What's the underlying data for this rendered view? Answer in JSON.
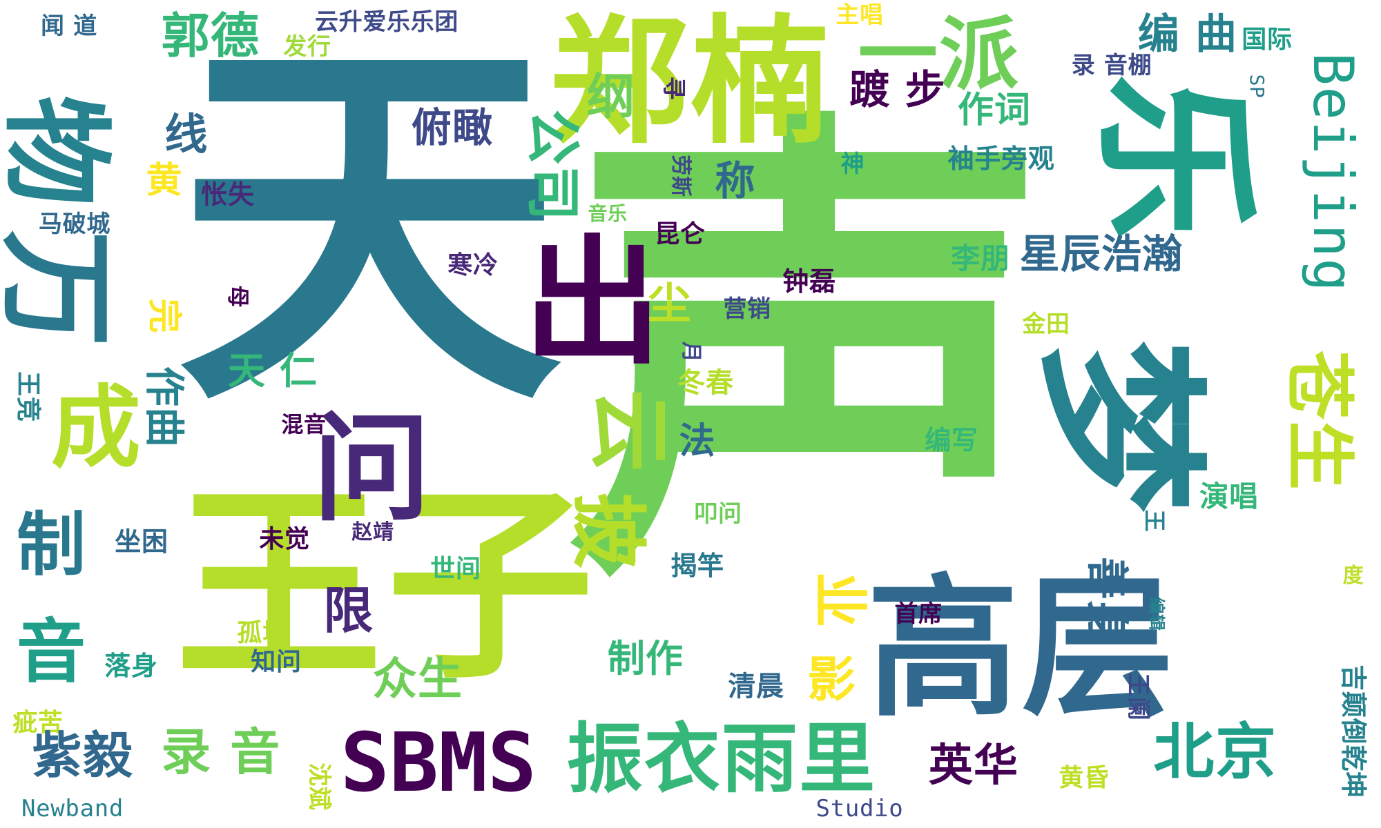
{
  "palette": {
    "lime": "#b5de2b",
    "green": "#6ece58",
    "green2": "#35b779",
    "teal": "#1f9e89",
    "teal2": "#26828e",
    "blue": "#31688e",
    "indigo": "#3e4989",
    "purple": "#482878",
    "dark": "#440154"
  },
  "words": [
    {
      "t": "天",
      "c": "#2a788e"
    },
    {
      "t": "声",
      "c": "#6ece58"
    },
    {
      "t": "王子",
      "c": "#b5de2b"
    },
    {
      "t": "郑楠",
      "c": "#b5de2b"
    },
    {
      "t": "一派",
      "c": "#6ece58"
    },
    {
      "t": "乐",
      "c": "#1f9e89"
    },
    {
      "t": "物",
      "c": "#26828e"
    },
    {
      "t": "万",
      "c": "#2a788e"
    },
    {
      "t": "出",
      "c": "#440154"
    },
    {
      "t": "梦",
      "c": "#26828e"
    },
    {
      "t": "高层",
      "c": "#31688e"
    },
    {
      "t": "问",
      "c": "#482878"
    },
    {
      "t": "成",
      "c": "#b5de2b"
    },
    {
      "t": "云",
      "c": "#a0da39"
    },
    {
      "t": "披",
      "c": "#b5de2b"
    },
    {
      "t": "制",
      "c": "#2a788e"
    },
    {
      "t": "音",
      "c": "#1f9e89"
    },
    {
      "t": "苍生",
      "c": "#bddf26"
    },
    {
      "t": "Beijing",
      "c": "#1f9e89"
    },
    {
      "t": "编 曲",
      "c": "#26828e"
    },
    {
      "t": "国际",
      "c": "#1f9e89"
    },
    {
      "t": "郭德",
      "c": "#35b779"
    },
    {
      "t": "纲",
      "c": "#6ece58"
    },
    {
      "t": "云升爱乐乐团",
      "c": "#3e4989"
    },
    {
      "t": "闻 道",
      "c": "#31688e"
    },
    {
      "t": "主唱",
      "c": "#fde725"
    },
    {
      "t": "发行",
      "c": "#a0da39"
    },
    {
      "t": "线",
      "c": "#31688e"
    },
    {
      "t": "公司",
      "c": "#35b779"
    },
    {
      "t": "踱 步",
      "c": "#440154"
    },
    {
      "t": "俯瞰",
      "c": "#3e4989"
    },
    {
      "t": "作词",
      "c": "#35b779"
    },
    {
      "t": "录 音棚",
      "c": "#3e4989"
    },
    {
      "t": "SP",
      "c": "#2a788e"
    },
    {
      "t": "寻",
      "c": "#482878"
    },
    {
      "t": "称",
      "c": "#31688e"
    },
    {
      "t": "黄",
      "c": "#fde725"
    },
    {
      "t": "怅失",
      "c": "#482878"
    },
    {
      "t": "袖手旁观",
      "c": "#26828e"
    },
    {
      "t": "神",
      "c": "#1f9e89"
    },
    {
      "t": "劳斯",
      "c": "#3e4989"
    },
    {
      "t": "音乐",
      "c": "#6ece58"
    },
    {
      "t": "昆仑",
      "c": "#440154"
    },
    {
      "t": "星辰浩瀚",
      "c": "#31688e"
    },
    {
      "t": "马破城",
      "c": "#31688e"
    },
    {
      "t": "寒冷",
      "c": "#482878"
    },
    {
      "t": "李朋",
      "c": "#35b779"
    },
    {
      "t": "尘",
      "c": "#bddf26"
    },
    {
      "t": "钟磊",
      "c": "#440154"
    },
    {
      "t": "营销",
      "c": "#3e4989"
    },
    {
      "t": "金田",
      "c": "#b5de2b"
    },
    {
      "t": "母",
      "c": "#440154"
    },
    {
      "t": "完",
      "c": "#fde725"
    },
    {
      "t": "作曲",
      "c": "#26828e"
    },
    {
      "t": "天 仁",
      "c": "#35b779"
    },
    {
      "t": "月",
      "c": "#3e4989"
    },
    {
      "t": "冬春",
      "c": "#b5de2b"
    },
    {
      "t": "法",
      "c": "#31688e"
    },
    {
      "t": "王竞",
      "c": "#26828e"
    },
    {
      "t": "混音",
      "c": "#440154"
    },
    {
      "t": "编写",
      "c": "#35b779"
    },
    {
      "t": "王",
      "c": "#26828e"
    },
    {
      "t": "演唱",
      "c": "#35b779"
    },
    {
      "t": "叩问",
      "c": "#6ece58"
    },
    {
      "t": "未觉",
      "c": "#440154"
    },
    {
      "t": "赵靖",
      "c": "#482878"
    },
    {
      "t": "坐困",
      "c": "#31688e"
    },
    {
      "t": "揭竿",
      "c": "#2a788e"
    },
    {
      "t": "世间",
      "c": "#35b779"
    },
    {
      "t": "限",
      "c": "#482878"
    },
    {
      "t": "业",
      "c": "#fde725"
    },
    {
      "t": "首席",
      "c": "#440154"
    },
    {
      "t": "善身",
      "c": "#31688e"
    },
    {
      "t": "度",
      "c": "#bddf26"
    },
    {
      "t": "孤城",
      "c": "#b5de2b"
    },
    {
      "t": "知问",
      "c": "#31688e"
    },
    {
      "t": "落身",
      "c": "#1f9e89"
    },
    {
      "t": "编辑",
      "c": "#26828e"
    },
    {
      "t": "众生",
      "c": "#6ece58"
    },
    {
      "t": "制作",
      "c": "#35b779"
    },
    {
      "t": "影",
      "c": "#fde725"
    },
    {
      "t": "清晨",
      "c": "#31688e"
    },
    {
      "t": "王阑",
      "c": "#3e4989"
    },
    {
      "t": "吉颠倒乾坤",
      "c": "#26828e"
    },
    {
      "t": "疵苦",
      "c": "#bddf26"
    },
    {
      "t": "紫毅",
      "c": "#31688e"
    },
    {
      "t": "录 音",
      "c": "#6ece58"
    },
    {
      "t": "SBMS",
      "c": "#440154"
    },
    {
      "t": "振衣雨里",
      "c": "#35b779"
    },
    {
      "t": "英华",
      "c": "#440154"
    },
    {
      "t": "北京",
      "c": "#1f9e89"
    },
    {
      "t": "黄昏",
      "c": "#bddf26"
    },
    {
      "t": "沈斌",
      "c": "#bddf26"
    },
    {
      "t": "Newband",
      "c": "#26828e"
    },
    {
      "t": "Studio",
      "c": "#3e4989"
    }
  ]
}
